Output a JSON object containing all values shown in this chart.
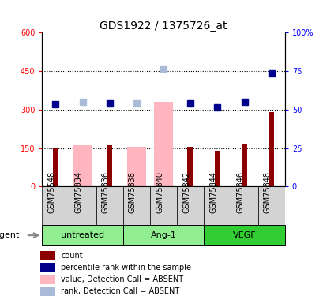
{
  "title": "GDS1922 / 1375726_at",
  "samples": [
    "GSM75548",
    "GSM75834",
    "GSM75836",
    "GSM75838",
    "GSM75840",
    "GSM75842",
    "GSM75844",
    "GSM75846",
    "GSM75848"
  ],
  "bar_values": [
    150,
    0,
    160,
    0,
    0,
    155,
    140,
    165,
    290
  ],
  "bar_absent": [
    0,
    160,
    0,
    155,
    330,
    0,
    0,
    0,
    0
  ],
  "rank_values": [
    320,
    0,
    325,
    0,
    0,
    325,
    310,
    330,
    440
  ],
  "rank_absent": [
    0,
    330,
    0,
    325,
    460,
    0,
    0,
    0,
    0
  ],
  "bar_color": "#8B0000",
  "bar_absent_color": "#FFB6C1",
  "rank_color": "#00008B",
  "rank_absent_color": "#AABBD8",
  "ylim_left": [
    0,
    600
  ],
  "ylim_right": [
    0,
    100
  ],
  "yticks_left": [
    0,
    150,
    300,
    450,
    600
  ],
  "yticks_right": [
    0,
    25,
    50,
    75,
    100
  ],
  "ytick_labels_left": [
    "0",
    "150",
    "300",
    "450",
    "600"
  ],
  "ytick_labels_right": [
    "0",
    "25",
    "50",
    "75",
    "100%"
  ],
  "grid_lines": [
    150,
    300,
    450
  ],
  "groups": [
    {
      "label": "untreated",
      "start": 0,
      "end": 2,
      "color": "#90EE90"
    },
    {
      "label": "Ang-1",
      "start": 3,
      "end": 5,
      "color": "#90EE90"
    },
    {
      "label": "VEGF",
      "start": 6,
      "end": 8,
      "color": "#32CD32"
    }
  ],
  "legend_items": [
    {
      "label": "count",
      "color": "#8B0000"
    },
    {
      "label": "percentile rank within the sample",
      "color": "#00008B"
    },
    {
      "label": "value, Detection Call = ABSENT",
      "color": "#FFB6C1"
    },
    {
      "label": "rank, Detection Call = ABSENT",
      "color": "#AABBD8"
    }
  ],
  "agent_label": "agent",
  "title_fontsize": 10,
  "tick_fontsize": 7,
  "label_fontsize": 8
}
